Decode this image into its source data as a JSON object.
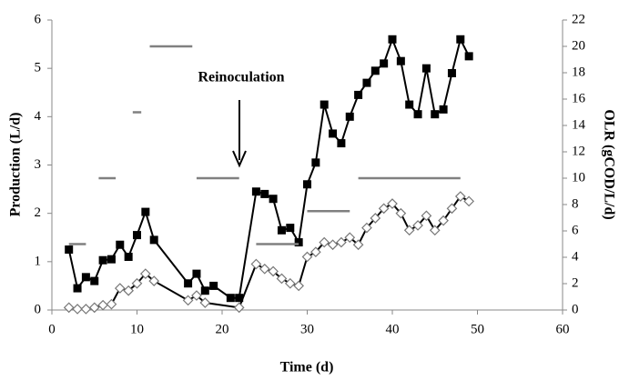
{
  "chart_data": {
    "type": "line",
    "xlabel": "Time (d)",
    "ylabel": "Production (L/d)",
    "y2label": "OLR (gCOD/L/d)",
    "annotation": "Reinoculation",
    "xlim": [
      0,
      60
    ],
    "xticks": [
      0,
      10,
      20,
      30,
      40,
      50,
      60
    ],
    "ylim": [
      0,
      6
    ],
    "yticks": [
      0,
      1,
      2,
      3,
      4,
      5,
      6
    ],
    "y2lim": [
      0,
      22
    ],
    "y2ticks": [
      0,
      2,
      4,
      6,
      8,
      10,
      12,
      14,
      16,
      18,
      20,
      22
    ],
    "series": [
      {
        "marker": "square",
        "color": "#000000",
        "x": [
          2,
          3,
          4,
          5,
          6,
          7,
          8,
          9,
          10,
          11,
          12,
          16,
          17,
          18,
          19,
          21,
          22,
          24,
          25,
          26,
          27,
          28,
          29,
          30,
          31,
          32,
          33,
          34,
          35,
          36,
          37,
          38,
          39,
          40,
          41,
          42,
          43,
          44,
          45,
          46,
          47,
          48,
          49
        ],
        "values": [
          1.25,
          0.45,
          0.68,
          0.6,
          1.03,
          1.05,
          1.35,
          1.1,
          1.55,
          2.03,
          1.45,
          0.55,
          0.75,
          0.4,
          0.5,
          0.25,
          0.25,
          2.45,
          2.4,
          2.3,
          1.65,
          1.7,
          1.4,
          2.6,
          3.05,
          4.25,
          3.65,
          3.45,
          4.0,
          4.45,
          4.7,
          4.95,
          5.1,
          5.6,
          5.15,
          4.25,
          4.05,
          5.0,
          4.05,
          4.15,
          4.9,
          5.6,
          5.25
        ]
      },
      {
        "marker": "diamond",
        "color": "#000000",
        "x": [
          2,
          3,
          4,
          5,
          6,
          7,
          8,
          9,
          10,
          11,
          12,
          16,
          17,
          18,
          22,
          24,
          25,
          26,
          27,
          28,
          29,
          30,
          31,
          32,
          33,
          34,
          35,
          36,
          37,
          38,
          39,
          40,
          41,
          42,
          43,
          44,
          45,
          46,
          47,
          48,
          49
        ],
        "values": [
          0.05,
          0.02,
          0.02,
          0.05,
          0.1,
          0.12,
          0.45,
          0.4,
          0.55,
          0.75,
          0.6,
          0.2,
          0.3,
          0.15,
          0.05,
          0.95,
          0.85,
          0.8,
          0.65,
          0.55,
          0.5,
          1.1,
          1.2,
          1.4,
          1.35,
          1.4,
          1.5,
          1.35,
          1.7,
          1.9,
          2.1,
          2.2,
          2.0,
          1.65,
          1.75,
          1.95,
          1.65,
          1.85,
          2.1,
          2.35,
          2.25
        ]
      },
      {
        "marker": "segment",
        "color": "#808080",
        "axis": "y2",
        "x_start": [
          2,
          5.5,
          9.5,
          11.5,
          17,
          24,
          30,
          36
        ],
        "x_end": [
          4,
          7.5,
          10.5,
          16.5,
          22,
          29,
          35,
          48
        ],
        "values": [
          5,
          10,
          15,
          20,
          10,
          5,
          7.5,
          10
        ]
      }
    ]
  }
}
